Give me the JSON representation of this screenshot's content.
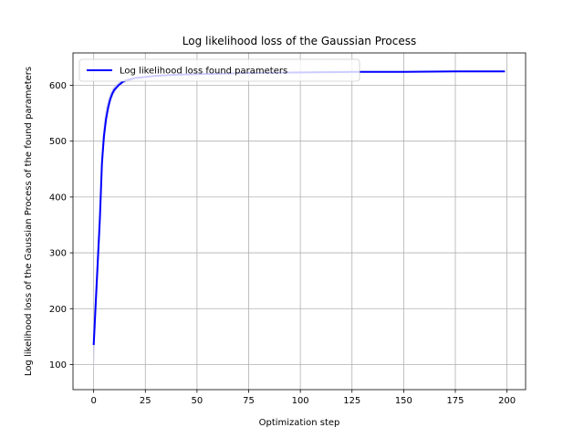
{
  "chart_data": {
    "type": "line",
    "title": "Log likelihood loss of the Gaussian Process",
    "xlabel": "Optimization step",
    "ylabel": "Log likelihood loss of the Gaussian Process of the found parameters",
    "xlim": [
      -10,
      209
    ],
    "ylim": [
      55,
      658
    ],
    "xticks": [
      0,
      25,
      50,
      75,
      100,
      125,
      150,
      175,
      200
    ],
    "yticks": [
      100,
      200,
      300,
      400,
      500,
      600
    ],
    "grid": true,
    "legend_position": "top-left",
    "series": [
      {
        "name": "Log likelihood loss found parameters",
        "color": "#0000ff",
        "band_color": "#c8c8f0",
        "x": [
          0,
          1,
          2,
          3,
          4,
          5,
          6,
          7,
          8,
          9,
          10,
          12,
          14,
          16,
          18,
          20,
          25,
          30,
          40,
          50,
          75,
          100,
          125,
          150,
          175,
          199
        ],
        "y": [
          135,
          210,
          285,
          360,
          460,
          510,
          540,
          560,
          575,
          585,
          592,
          600,
          606,
          609,
          611,
          613,
          615,
          617,
          619,
          620,
          622,
          623,
          624,
          624,
          625,
          625
        ],
        "band_lower": [
          90,
          170,
          250,
          330,
          430,
          490,
          525,
          550,
          567,
          578,
          586,
          596,
          603,
          607,
          609,
          611,
          614,
          616,
          618,
          619,
          621,
          622,
          623,
          623,
          624,
          624
        ],
        "band_upper": [
          175,
          250,
          325,
          400,
          495,
          535,
          560,
          575,
          586,
          593,
          599,
          605,
          609,
          612,
          613,
          615,
          617,
          618,
          620,
          621,
          623,
          624,
          625,
          625,
          626,
          626
        ]
      }
    ]
  }
}
